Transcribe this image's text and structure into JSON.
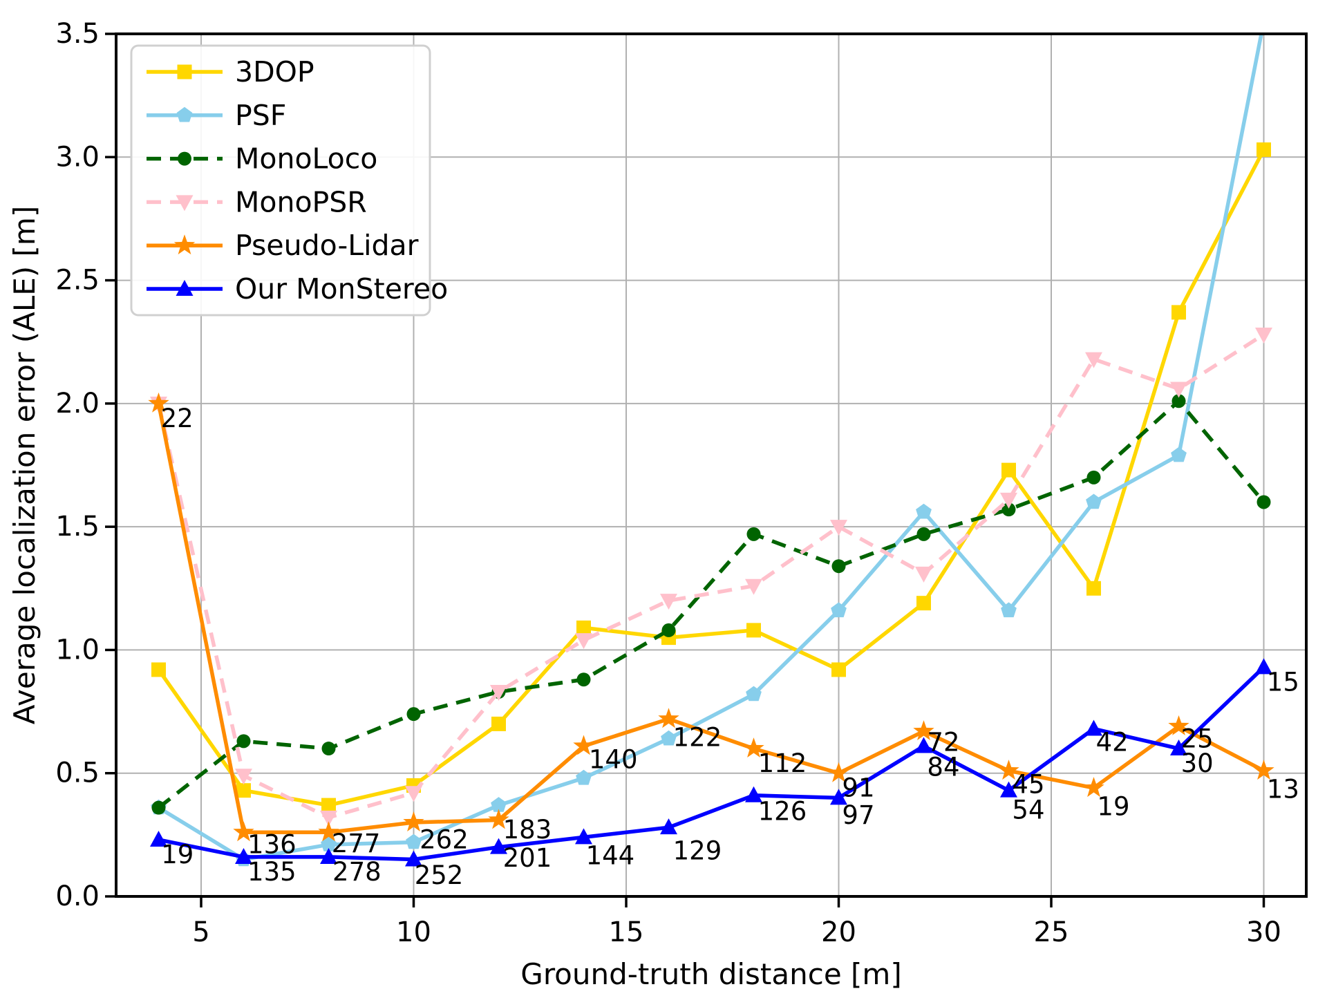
{
  "chart_data": {
    "type": "line",
    "title": "",
    "xlabel": "Ground-truth distance [m]",
    "ylabel": "Average localization error (ALE) [m]",
    "xlim": [
      3,
      31
    ],
    "ylim": [
      0,
      3.5
    ],
    "xticks": [
      5,
      10,
      15,
      20,
      25,
      30
    ],
    "yticks": [
      0.0,
      0.5,
      1.0,
      1.5,
      2.0,
      2.5,
      3.0,
      3.5
    ],
    "ytick_labels": [
      "0.0",
      "0.5",
      "1.0",
      "1.5",
      "2.0",
      "2.5",
      "3.0",
      "3.5"
    ],
    "xtick_labels": [
      "5",
      "10",
      "15",
      "20",
      "25",
      "30"
    ],
    "grid": true,
    "grid_color": "#b0b0b0",
    "legend_position": "upper-left",
    "x": [
      4,
      6,
      8,
      10,
      12,
      14,
      16,
      18,
      20,
      22,
      24,
      26,
      28,
      30
    ],
    "series": [
      {
        "name": "3DOP",
        "color": "#FFD700",
        "linestyle": "solid",
        "marker": "square",
        "values": [
          0.92,
          0.43,
          0.37,
          0.45,
          0.7,
          1.09,
          1.05,
          1.08,
          0.92,
          1.19,
          1.73,
          1.25,
          2.37,
          3.03
        ]
      },
      {
        "name": "PSF",
        "color": "#87CEEB",
        "linestyle": "solid",
        "marker": "pentagon",
        "values": [
          0.36,
          0.15,
          0.21,
          0.22,
          0.37,
          0.48,
          0.64,
          0.82,
          1.16,
          1.56,
          1.16,
          1.6,
          1.79,
          3.55
        ]
      },
      {
        "name": "MonoLoco",
        "color": "#006400",
        "linestyle": "dashed",
        "marker": "circle",
        "values": [
          0.36,
          0.63,
          0.6,
          0.74,
          0.83,
          0.88,
          1.08,
          1.47,
          1.34,
          1.47,
          1.57,
          1.7,
          2.01,
          1.6
        ]
      },
      {
        "name": "MonoPSR",
        "color": "#FFC0CB",
        "linestyle": "dashed",
        "marker": "triangle-down",
        "values": [
          2.0,
          0.49,
          0.32,
          0.42,
          0.83,
          1.04,
          1.2,
          1.26,
          1.5,
          1.31,
          1.61,
          2.18,
          2.06,
          2.28
        ]
      },
      {
        "name": "Pseudo-Lidar",
        "color": "#FF8C00",
        "linestyle": "solid",
        "marker": "star",
        "values": [
          2.0,
          0.26,
          0.26,
          0.3,
          0.31,
          0.61,
          0.72,
          0.6,
          0.5,
          0.67,
          0.51,
          0.44,
          0.69,
          0.51
        ]
      },
      {
        "name": "Our MonStereo",
        "color": "#0000FF",
        "linestyle": "solid",
        "marker": "triangle-up",
        "values": [
          0.23,
          0.16,
          0.16,
          0.15,
          0.2,
          0.24,
          0.28,
          0.41,
          0.4,
          0.61,
          0.43,
          0.68,
          0.6,
          0.93
        ]
      }
    ],
    "annotations": [
      {
        "x": 4.05,
        "y": 1.94,
        "text": "22"
      },
      {
        "x": 4.06,
        "y": 0.17,
        "text": "19"
      },
      {
        "x": 6.09,
        "y": 0.21,
        "text": "136"
      },
      {
        "x": 6.09,
        "y": 0.1,
        "text": "135"
      },
      {
        "x": 8.07,
        "y": 0.215,
        "text": "277"
      },
      {
        "x": 8.09,
        "y": 0.1,
        "text": "278"
      },
      {
        "x": 10.14,
        "y": 0.23,
        "text": "262"
      },
      {
        "x": 10.02,
        "y": 0.085,
        "text": "252"
      },
      {
        "x": 12.1,
        "y": 0.27,
        "text": "183"
      },
      {
        "x": 12.1,
        "y": 0.155,
        "text": "201"
      },
      {
        "x": 14.12,
        "y": 0.555,
        "text": "140"
      },
      {
        "x": 14.05,
        "y": 0.165,
        "text": "144"
      },
      {
        "x": 16.1,
        "y": 0.645,
        "text": "122"
      },
      {
        "x": 16.1,
        "y": 0.185,
        "text": "129"
      },
      {
        "x": 18.1,
        "y": 0.54,
        "text": "112"
      },
      {
        "x": 18.1,
        "y": 0.345,
        "text": "126"
      },
      {
        "x": 20.08,
        "y": 0.44,
        "text": "91"
      },
      {
        "x": 20.08,
        "y": 0.33,
        "text": "97"
      },
      {
        "x": 22.08,
        "y": 0.625,
        "text": "72"
      },
      {
        "x": 22.08,
        "y": 0.525,
        "text": "84"
      },
      {
        "x": 24.08,
        "y": 0.455,
        "text": "45"
      },
      {
        "x": 24.08,
        "y": 0.35,
        "text": "54"
      },
      {
        "x": 26.05,
        "y": 0.625,
        "text": "42"
      },
      {
        "x": 26.08,
        "y": 0.365,
        "text": "19"
      },
      {
        "x": 28.05,
        "y": 0.64,
        "text": "25"
      },
      {
        "x": 28.05,
        "y": 0.54,
        "text": "30"
      },
      {
        "x": 30.07,
        "y": 0.87,
        "text": "15"
      },
      {
        "x": 30.07,
        "y": 0.435,
        "text": "13"
      }
    ]
  }
}
